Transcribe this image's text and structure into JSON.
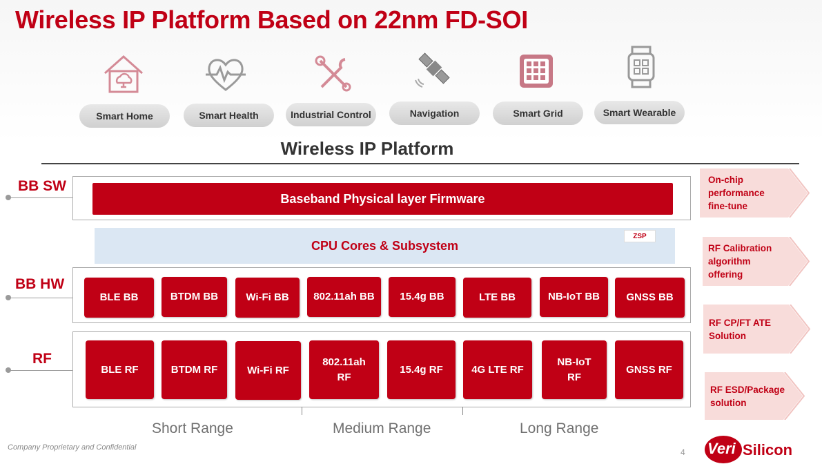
{
  "title": "Wireless IP Platform Based on 22nm FD-SOI",
  "applications": [
    {
      "label": "Smart Home",
      "icon": "smart-home-icon"
    },
    {
      "label": "Smart Health",
      "icon": "heart-pulse-icon"
    },
    {
      "label": "Industrial Control",
      "icon": "tools-icon"
    },
    {
      "label": "Navigation",
      "icon": "satellite-icon"
    },
    {
      "label": "Smart Grid",
      "icon": "grid-chip-icon"
    },
    {
      "label": "Smart Wearable",
      "icon": "smartwatch-icon"
    }
  ],
  "platform_title": "Wireless IP Platform",
  "layers": {
    "bb_sw": "BB SW",
    "bb_hw": "BB HW",
    "rf": "RF"
  },
  "firmware_label": "Baseband Physical layer Firmware",
  "cpu_label": "CPU Cores & Subsystem",
  "zsp_logo": "ZSP",
  "bb_blocks": [
    "BLE BB",
    "BTDM BB",
    "Wi-Fi BB",
    "802.11ah BB",
    "15.4g BB",
    "LTE BB",
    "NB-IoT BB",
    "GNSS BB"
  ],
  "rf_blocks": [
    "BLE  RF",
    "BTDM RF",
    "Wi-Fi RF",
    "802.11ah\nRF",
    "15.4g RF",
    "4G LTE RF",
    "NB-IoT\nRF",
    "GNSS RF"
  ],
  "ranges": [
    "Short Range",
    "Medium Range",
    "Long Range"
  ],
  "offerings": [
    "On-chip\nperformance\nfine-tune",
    "RF Calibration\nalgorithm\noffering",
    "RF CP/FT ATE\nSolution",
    "RF ESD/Package\nsolution"
  ],
  "footer": "Company Proprietary and Confidential",
  "page_number": "4",
  "logo": {
    "part1": "Veri",
    "part2": "Silicon"
  },
  "colors": {
    "brand_red": "#c00015",
    "cpu_blue": "#dbe7f3",
    "chevron_pink": "#f8dcda",
    "icon_pink": "#d48a96"
  }
}
